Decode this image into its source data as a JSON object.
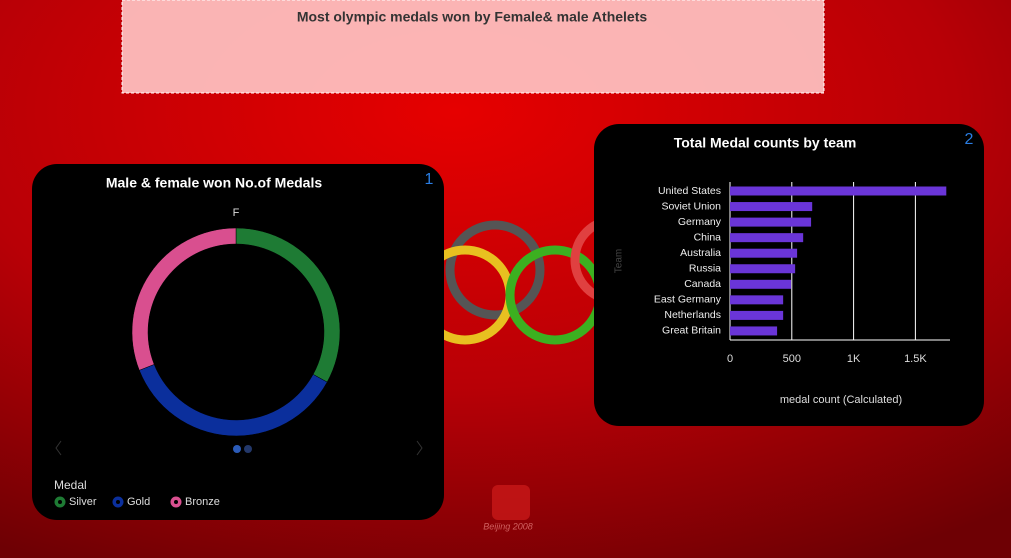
{
  "header": {
    "title": "Most olympic medals won by Female& male Athelets"
  },
  "logo_caption": "Beijing 2008",
  "chart_data": [
    {
      "type": "donut",
      "badge": "1",
      "title": "Male & female won No.of Medals",
      "subtitle": "F",
      "legend_title": "Medal",
      "categories": [
        "Silver",
        "Gold",
        "Bronze"
      ],
      "values": [
        33,
        36,
        31
      ],
      "colors": [
        "#1e7b34",
        "#0b2f9c",
        "#d94f8f"
      ]
    },
    {
      "type": "hbar",
      "badge": "2",
      "title": "Total Medal counts by team",
      "y_label": "Team",
      "x_label": "medal count (Calculated)",
      "categories": [
        "United States",
        "Soviet Union",
        "Germany",
        "China",
        "Australia",
        "Russia",
        "Canada",
        "East Germany",
        "Netherlands",
        "Great Britain"
      ],
      "values": [
        1750,
        665,
        656,
        592,
        543,
        527,
        494,
        430,
        430,
        381
      ],
      "color": "#6a35d8",
      "xlim": [
        0,
        1780
      ],
      "xticks": [
        0,
        500,
        {
          "value": 1000,
          "label": "1K"
        },
        {
          "value": 1500,
          "label": "1.5K"
        }
      ],
      "grid": true
    }
  ]
}
